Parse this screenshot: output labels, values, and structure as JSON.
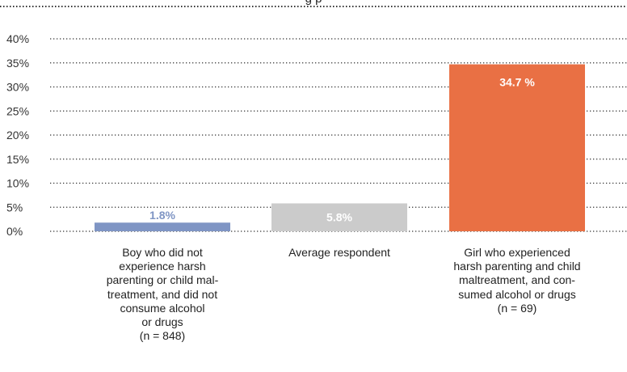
{
  "title_fragment": "g p",
  "chart_data": {
    "type": "bar",
    "ylim": [
      0,
      40
    ],
    "yticks": [
      "0%",
      "5%",
      "10%",
      "15%",
      "20%",
      "25%",
      "30%",
      "35%",
      "40%"
    ],
    "grid": true,
    "categories": [
      "Boy who did not\nexperience harsh\nparenting or child mal-\ntreatment, and did not\nconsume alcohol\nor drugs\n(n = 848)",
      "Average respondent",
      "Girl who experienced\nharsh parenting and child\nmaltreatment, and con-\nsumed alcohol or drugs\n(n = 69)"
    ],
    "values": [
      1.8,
      5.8,
      34.7
    ],
    "data_labels": [
      "1.8%",
      "5.8%",
      "34.7 %"
    ],
    "colors": [
      "#7f95c4",
      "#cbcbcb",
      "#e97044"
    ],
    "label_colors": [
      "#7f95c4",
      "#ffffff",
      "#ffffff"
    ]
  }
}
